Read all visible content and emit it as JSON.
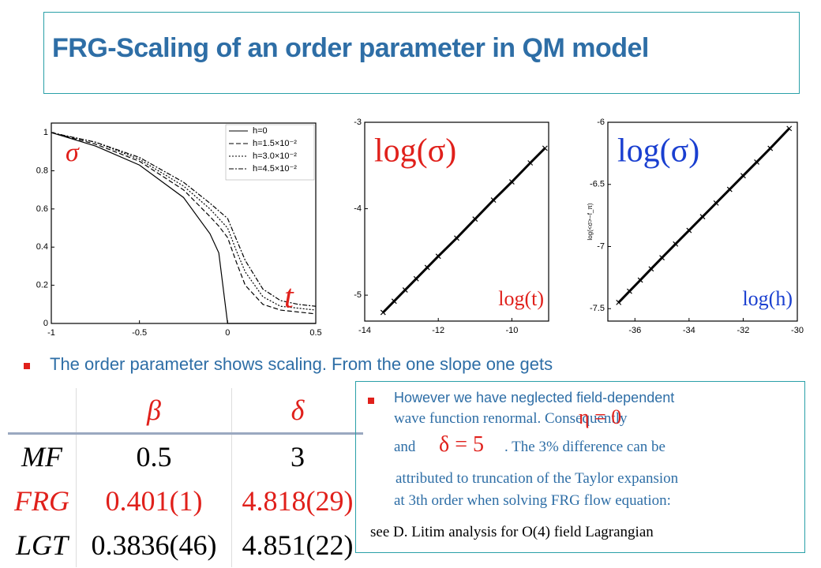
{
  "title": "FRG-Scaling of an order parameter in QM model",
  "chart_data": [
    {
      "type": "line",
      "annotations": [
        "σ",
        "t"
      ],
      "legend": "top-right",
      "x": [
        -1,
        -0.75,
        -0.5,
        -0.25,
        -0.1,
        -0.05,
        0,
        0.05,
        0.1,
        0.2,
        0.3,
        0.4,
        0.5
      ],
      "series": [
        {
          "name": "h=0",
          "color": "#000000",
          "dash": "solid",
          "values": [
            1,
            0.93,
            0.83,
            0.66,
            0.47,
            0.37,
            0,
            0,
            0,
            0,
            0,
            0,
            0
          ]
        },
        {
          "name": "h=1.5×10⁻²",
          "color": "#000000",
          "dash": "dashed",
          "values": [
            1,
            0.94,
            0.85,
            0.7,
            0.56,
            0.51,
            0.45,
            0.32,
            0.2,
            0.1,
            0.07,
            0.06,
            0.05
          ]
        },
        {
          "name": "h=3.0×10⁻²",
          "color": "#000000",
          "dash": "dotted",
          "values": [
            1,
            0.95,
            0.86,
            0.72,
            0.6,
            0.55,
            0.5,
            0.38,
            0.27,
            0.14,
            0.09,
            0.08,
            0.07
          ]
        },
        {
          "name": "h=4.5×10⁻²",
          "color": "#000000",
          "dash": "dashdot",
          "values": [
            1,
            0.95,
            0.87,
            0.74,
            0.63,
            0.59,
            0.55,
            0.44,
            0.33,
            0.18,
            0.12,
            0.1,
            0.09
          ]
        }
      ],
      "xlim": [
        -1,
        0.5
      ],
      "ylim": [
        0,
        1.05
      ],
      "xticks": [
        -1,
        -0.5,
        0,
        0.5
      ],
      "yticks": [
        0,
        0.2,
        0.4,
        0.6,
        0.8,
        1
      ]
    },
    {
      "type": "line",
      "marker": "x",
      "title": "log(σ)",
      "xlabel": "log(t)",
      "label_color": "#e0201b",
      "x": [
        -13.5,
        -13.2,
        -12.9,
        -12.6,
        -12.3,
        -12,
        -11.5,
        -11,
        -10.5,
        -10,
        -9.5,
        -9.1
      ],
      "series": [
        {
          "color": "#000000",
          "values": [
            -5.2,
            -5.07,
            -4.94,
            -4.81,
            -4.68,
            -4.55,
            -4.34,
            -4.12,
            -3.9,
            -3.69,
            -3.47,
            -3.3
          ]
        }
      ],
      "xlim": [
        -14,
        -9
      ],
      "ylim": [
        -5.3,
        -3
      ],
      "xticks": [
        -14,
        -12,
        -10
      ],
      "yticks": [
        -5,
        -4,
        -3
      ]
    },
    {
      "type": "line",
      "marker": "x",
      "title": "log(σ)",
      "xlabel": "log(h)",
      "ylabel": "log(<σ>−f_π)",
      "label_color": "#1a3fd0",
      "x": [
        -36.6,
        -36.2,
        -35.8,
        -35.4,
        -35,
        -34.5,
        -34,
        -33.5,
        -33,
        -32.5,
        -32,
        -31.5,
        -31,
        -30.3
      ],
      "series": [
        {
          "color": "#000000",
          "values": [
            -7.45,
            -7.36,
            -7.27,
            -7.18,
            -7.09,
            -6.98,
            -6.87,
            -6.76,
            -6.65,
            -6.54,
            -6.43,
            -6.32,
            -6.21,
            -6.05
          ]
        }
      ],
      "xlim": [
        -37,
        -30
      ],
      "ylim": [
        -7.6,
        -6
      ],
      "xticks": [
        -36,
        -34,
        -32,
        -30
      ],
      "yticks": [
        -7.5,
        -7,
        -6.5,
        -6
      ]
    }
  ],
  "bullet": "The order parameter shows scaling. From the one slope one gets",
  "table": {
    "columns": [
      "β",
      "δ"
    ],
    "rows": [
      {
        "label": "MF",
        "values": [
          "0.5",
          "3"
        ]
      },
      {
        "label": "FRG",
        "values": [
          "0.401(1)",
          "4.818(29)"
        ]
      },
      {
        "label": "LGT",
        "values": [
          "0.3836(46)",
          "4.851(22)"
        ]
      }
    ]
  },
  "note": {
    "text_1": "However we have neglected field-dependent",
    "text_2": "wave function renormal.  Consequently",
    "eta": "η = 0",
    "text_3": "and",
    "delta": "δ = 5",
    "text_4": ". The 3% difference  can be",
    "text_5": "attributed to truncation of the Taylor expansion",
    "text_6": "at 3th order  when  solving FRG  flow equation:",
    "reference": "see D. Litim  analysis  for O(4) field Lagrangian"
  }
}
